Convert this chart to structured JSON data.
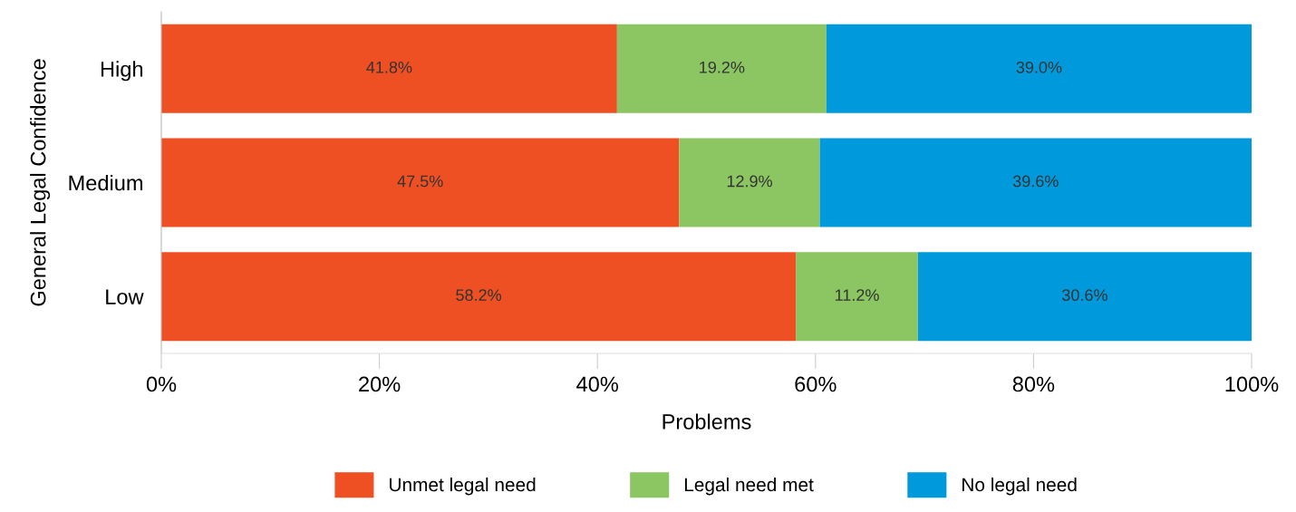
{
  "chart_data": {
    "type": "bar",
    "orientation": "horizontal",
    "stacked": true,
    "ylabel": "General Legal Confidence",
    "xlabel": "Problems",
    "categories": [
      "High",
      "Medium",
      "Low"
    ],
    "series": [
      {
        "name": "Unmet legal need",
        "color": "#ef5023",
        "values": [
          41.8,
          47.5,
          58.2
        ],
        "value_labels": [
          "41.8%",
          "47.5%",
          "58.2%"
        ]
      },
      {
        "name": "Legal need met",
        "color": "#8bc663",
        "values": [
          19.2,
          12.9,
          11.2
        ],
        "value_labels": [
          "19.2%",
          "12.9%",
          "11.2%"
        ]
      },
      {
        "name": "No legal need",
        "color": "#0099dc",
        "values": [
          39.0,
          39.6,
          30.6
        ],
        "value_labels": [
          "39.0%",
          "39.6%",
          "30.6%"
        ]
      }
    ],
    "xlim": [
      0,
      100
    ],
    "xticks": [
      {
        "value": 0,
        "label": "0%"
      },
      {
        "value": 20,
        "label": "20%"
      },
      {
        "value": 40,
        "label": "40%"
      },
      {
        "value": 60,
        "label": "60%"
      },
      {
        "value": 80,
        "label": "80%"
      },
      {
        "value": 100,
        "label": "100%"
      }
    ],
    "grid": false,
    "legend": "bottom"
  }
}
